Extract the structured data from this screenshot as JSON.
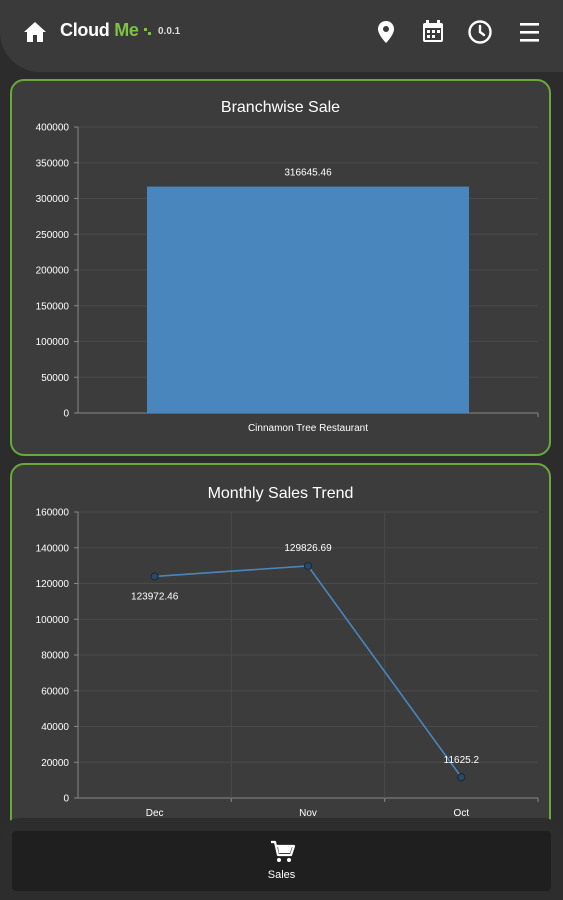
{
  "header": {
    "brand_cloud": "Cloud",
    "brand_me": "Me",
    "version": "0.0.1",
    "icons": [
      "home-icon",
      "location-pin-icon",
      "calendar-icon",
      "clock-icon",
      "menu-icon"
    ]
  },
  "colors": {
    "accent": "#6aa83b",
    "bar": "#4a86be",
    "line": "#4a86be",
    "card": "#3c3c3c"
  },
  "bottom_nav": {
    "tabs": [
      {
        "label": "Sales",
        "icon": "cart-icon"
      }
    ]
  },
  "chart_data": [
    {
      "type": "bar",
      "title": "Branchwise Sale",
      "categories": [
        "Cinnamon Tree Restaurant"
      ],
      "values": [
        316645.46
      ],
      "data_labels": [
        "316645.46"
      ],
      "ylim": [
        0,
        400000
      ],
      "yticks": [
        "0",
        "50000",
        "100000",
        "150000",
        "200000",
        "250000",
        "300000",
        "350000",
        "400000"
      ],
      "grid": true
    },
    {
      "type": "line",
      "title": "Monthly Sales Trend",
      "categories": [
        "Dec",
        "Nov",
        "Oct"
      ],
      "values": [
        123972.46,
        129826.69,
        11625.2
      ],
      "data_labels": [
        "123972.46",
        "129826.69",
        "11625.2"
      ],
      "ylim": [
        0,
        160000
      ],
      "yticks": [
        "0",
        "20000",
        "40000",
        "60000",
        "80000",
        "100000",
        "120000",
        "140000",
        "160000"
      ],
      "grid": true
    }
  ]
}
